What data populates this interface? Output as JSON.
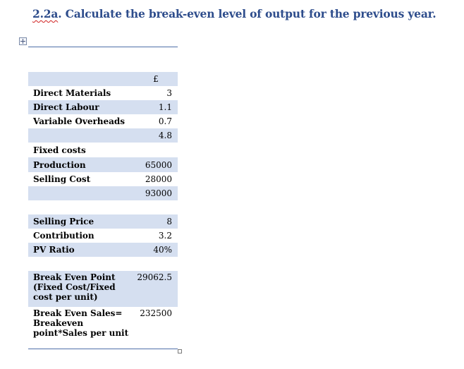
{
  "heading": {
    "prefix": "2.2a",
    "rest": ". Calculate the break-even level of output for the previous year."
  },
  "table": {
    "currency_header": "£",
    "rows": [
      {
        "label": "Direct Materials",
        "value": "3"
      },
      {
        "label": "Direct Labour",
        "value": "1.1"
      },
      {
        "label": "Variable Overheads",
        "value": "0.7"
      },
      {
        "label": "",
        "value": "4.8"
      },
      {
        "label": "Fixed costs",
        "value": ""
      },
      {
        "label": "Production",
        "value": "65000"
      },
      {
        "label": "Selling Cost",
        "value": "28000"
      },
      {
        "label": "",
        "value": "93000"
      },
      {
        "label": "Selling Price",
        "value": "8"
      },
      {
        "label": "Contribution",
        "value": "3.2"
      },
      {
        "label": "PV Ratio",
        "value": "40%"
      },
      {
        "label": "Break Even Point (Fixed Cost/Fixed cost per unit)",
        "value": "29062.5"
      },
      {
        "label": "Break Even Sales= Breakeven point*Sales per unit",
        "value": "232500"
      }
    ]
  }
}
